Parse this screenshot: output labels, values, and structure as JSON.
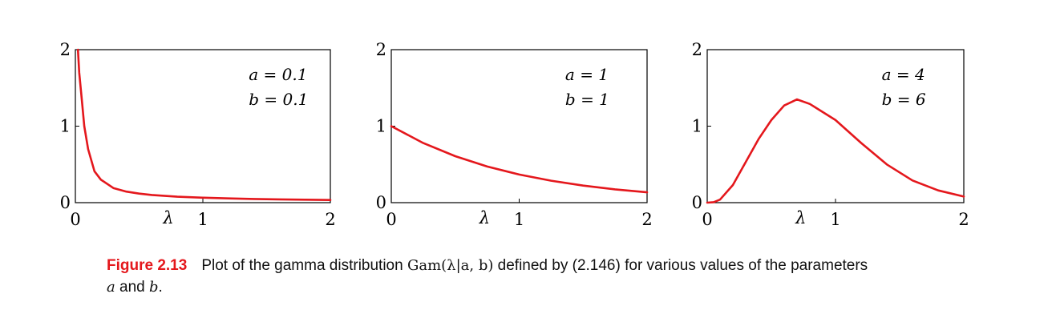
{
  "chart_data": [
    {
      "type": "line",
      "series": [
        {
          "params": {
            "a": 0.1,
            "b": 0.1
          },
          "x": [
            0.02,
            0.03,
            0.05,
            0.07,
            0.1,
            0.15,
            0.2,
            0.3,
            0.4,
            0.5,
            0.6,
            0.8,
            1.0,
            1.2,
            1.4,
            1.6,
            1.8,
            2.0
          ],
          "y": [
            2.0,
            1.7,
            1.35,
            1.0,
            0.7,
            0.41,
            0.3,
            0.19,
            0.145,
            0.118,
            0.1,
            0.078,
            0.065,
            0.055,
            0.048,
            0.043,
            0.039,
            0.035
          ]
        }
      ],
      "annotations": [
        "a = 0.1",
        "b = 0.1"
      ],
      "xlabel": "λ",
      "xticks": [
        "0",
        "1",
        "2"
      ],
      "yticks": [
        "0",
        "1",
        "2"
      ],
      "xlim": [
        0,
        2
      ],
      "ylim": [
        0,
        2
      ],
      "color": "#e4171c"
    },
    {
      "type": "line",
      "series": [
        {
          "params": {
            "a": 1,
            "b": 1
          },
          "x": [
            0,
            0.25,
            0.5,
            0.75,
            1.0,
            1.25,
            1.5,
            1.75,
            2.0
          ],
          "y": [
            1.0,
            0.779,
            0.607,
            0.472,
            0.368,
            0.287,
            0.223,
            0.174,
            0.135
          ]
        }
      ],
      "annotations": [
        "a = 1",
        "b = 1"
      ],
      "xlabel": "λ",
      "xticks": [
        "0",
        "1",
        "2"
      ],
      "yticks": [
        "0",
        "1",
        "2"
      ],
      "xlim": [
        0,
        2
      ],
      "ylim": [
        0,
        2
      ],
      "color": "#e4171c"
    },
    {
      "type": "line",
      "series": [
        {
          "params": {
            "a": 4,
            "b": 6
          },
          "x": [
            0,
            0.05,
            0.1,
            0.2,
            0.3,
            0.4,
            0.5,
            0.6,
            0.7,
            0.8,
            1.0,
            1.2,
            1.4,
            1.6,
            1.8,
            2.0
          ],
          "y": [
            0,
            0.006,
            0.04,
            0.23,
            0.53,
            0.83,
            1.08,
            1.27,
            1.35,
            1.29,
            1.08,
            0.78,
            0.5,
            0.29,
            0.16,
            0.08
          ]
        }
      ],
      "annotations": [
        "a = 4",
        "b = 6"
      ],
      "xlabel": "λ",
      "xticks": [
        "0",
        "1",
        "2"
      ],
      "yticks": [
        "0",
        "1",
        "2"
      ],
      "xlim": [
        0,
        2
      ],
      "ylim": [
        0,
        2
      ],
      "color": "#e4171c"
    }
  ],
  "caption": {
    "label": "Figure 2.13",
    "text_before": "Plot of the gamma distribution ",
    "math": "Gam(λ|a, b)",
    "text_after": " defined by (2.146) for various values of the parameters",
    "line2_a": "a",
    "line2_and": " and ",
    "line2_b": "b",
    "line2_end": "."
  }
}
